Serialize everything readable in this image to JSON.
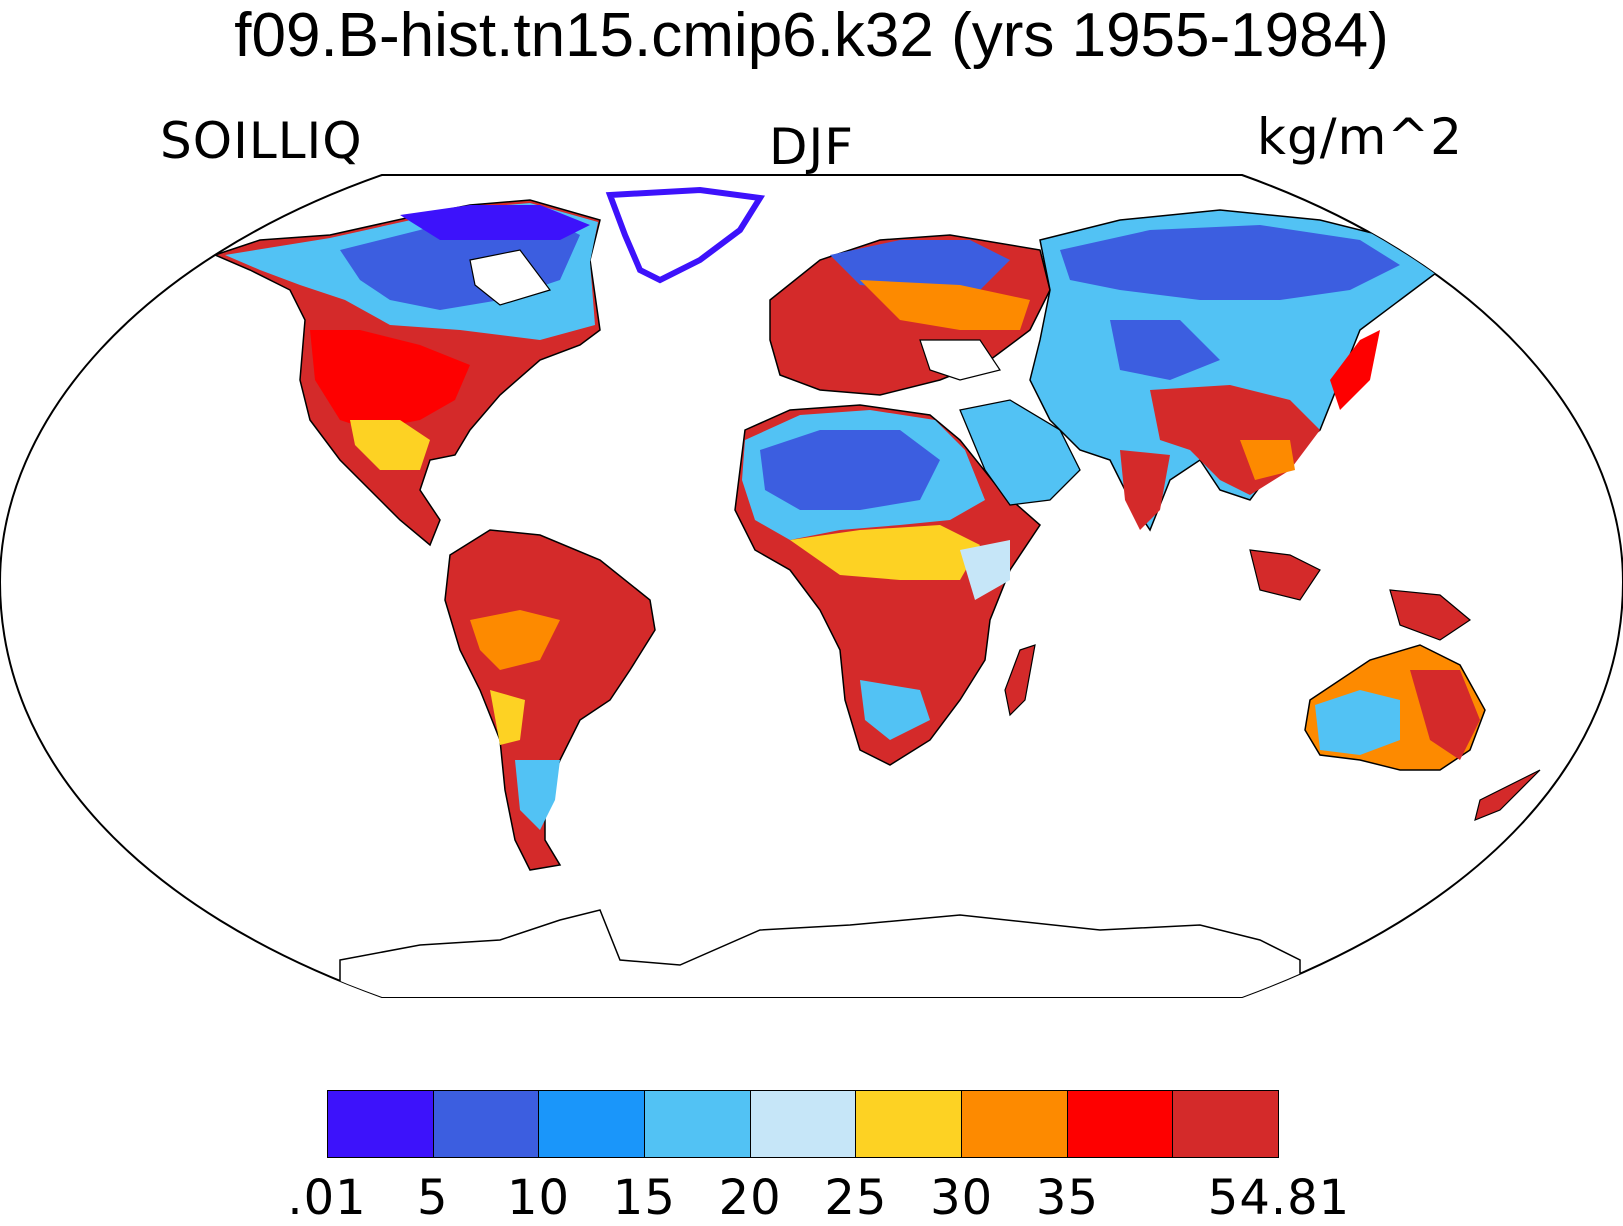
{
  "title": "f09.B-hist.tn15.cmip6.k32 (yrs 1955-1984)",
  "left_label": "SOILLIQ",
  "center_label": "DJF",
  "right_label": "kg/m^2",
  "colorbar": {
    "colors": [
      "#3d12fb",
      "#3c5ee0",
      "#1a96fa",
      "#52c2f4",
      "#c6e6f8",
      "#fdd223",
      "#fd8a00",
      "#fe0000",
      "#d42a2a"
    ],
    "labels": [
      ".01",
      "5",
      "10",
      "15",
      "20",
      "25",
      "30",
      "35",
      "54.81"
    ]
  }
}
